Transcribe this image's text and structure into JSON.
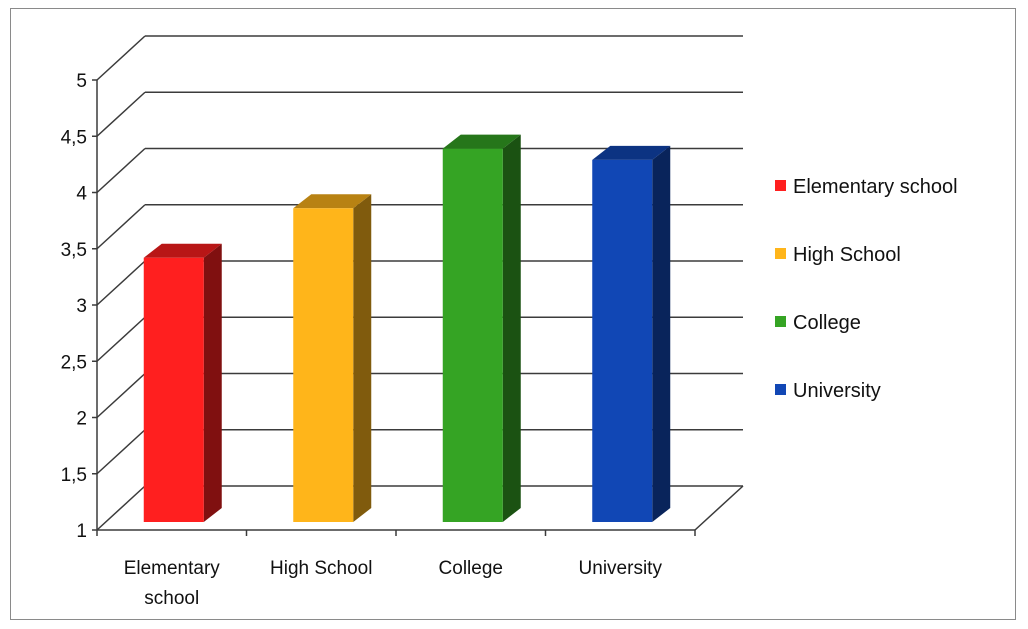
{
  "chart_data": {
    "type": "bar",
    "categories": [
      "Elementary school",
      "High School",
      "College",
      "University"
    ],
    "values": [
      3.42,
      3.86,
      4.39,
      4.29
    ],
    "ylim": [
      1,
      5
    ],
    "y_ticks": [
      "1",
      "1,5",
      "2",
      "2,5",
      "3",
      "3,5",
      "4",
      "4,5",
      "5"
    ],
    "x_tick_labels": [
      [
        "Elementary",
        "school"
      ],
      [
        "High School"
      ],
      [
        "College"
      ],
      [
        "University"
      ]
    ],
    "legend": [
      {
        "name": "Elementary school",
        "color": "#ff1f1f"
      },
      {
        "name": "High School",
        "color": "#ffb51a"
      },
      {
        "name": "College",
        "color": "#35a424"
      },
      {
        "name": "University",
        "color": "#1147b5"
      }
    ],
    "legend_position": "right",
    "grid": true,
    "three_d": true,
    "title": "",
    "xlabel": "",
    "ylabel": ""
  }
}
